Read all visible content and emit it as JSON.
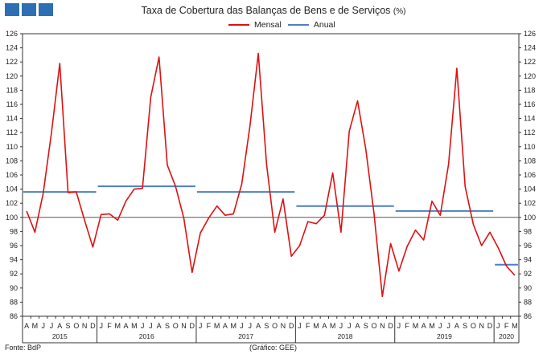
{
  "header": {
    "title": "Taxa de Cobertura das Balanças de Bens e de Serviços",
    "title_unit": "(%)"
  },
  "footer": {
    "source": "Fonte: BdP",
    "graphic_credit": "(Gráfico: GEE)"
  },
  "colors": {
    "mensal": "#dd1111",
    "anual": "#4d7fc4",
    "logo": "#2e6fb3",
    "axis": "#333333",
    "reference_line": "#555555"
  },
  "chart_data": {
    "type": "line",
    "ylim": [
      86,
      126
    ],
    "ytick_step": 2,
    "grid": false,
    "reference_line_y": 100,
    "legend": {
      "position": "top-center",
      "entries": [
        "Mensal",
        "Anual"
      ]
    },
    "month_labels": [
      "A",
      "M",
      "J",
      "J",
      "A",
      "S",
      "O",
      "N",
      "D",
      "J",
      "F",
      "M",
      "A",
      "M",
      "J",
      "J",
      "A",
      "S",
      "O",
      "N",
      "D",
      "J",
      "F",
      "M",
      "A",
      "M",
      "J",
      "J",
      "A",
      "S",
      "O",
      "N",
      "D",
      "J",
      "F",
      "M",
      "A",
      "M",
      "J",
      "J",
      "A",
      "S",
      "O",
      "N",
      "D",
      "J",
      "F",
      "M",
      "A",
      "M",
      "J",
      "J",
      "A",
      "S",
      "O",
      "N",
      "D",
      "J",
      "F",
      "M"
    ],
    "year_groups": [
      {
        "label": "2015",
        "start": 0,
        "end": 8
      },
      {
        "label": "2016",
        "start": 9,
        "end": 20
      },
      {
        "label": "2017",
        "start": 21,
        "end": 32
      },
      {
        "label": "2018",
        "start": 33,
        "end": 44
      },
      {
        "label": "2019",
        "start": 45,
        "end": 56
      },
      {
        "label": "2020",
        "start": 57,
        "end": 59
      }
    ],
    "series": [
      {
        "name": "Mensal",
        "style": "line",
        "values": [
          100.9,
          97.9,
          103.4,
          112.0,
          121.8,
          103.5,
          103.6,
          99.6,
          95.8,
          100.4,
          100.5,
          99.6,
          102.3,
          104.0,
          104.1,
          117.0,
          122.7,
          107.4,
          104.4,
          99.9,
          92.2,
          97.8,
          99.9,
          101.6,
          100.3,
          100.5,
          104.7,
          113.0,
          123.2,
          107.5,
          97.9,
          102.6,
          94.5,
          96.0,
          99.4,
          99.1,
          100.3,
          106.3,
          97.9,
          112.2,
          116.5,
          109.6,
          100.5,
          88.8,
          96.3,
          92.4,
          95.9,
          98.2,
          96.8,
          102.3,
          100.3,
          107.5,
          121.1,
          104.4,
          99.0,
          96.0,
          97.9,
          95.7,
          93.1,
          91.8
        ]
      },
      {
        "name": "Anual",
        "style": "segments",
        "segments": [
          {
            "start": 0,
            "end": 8,
            "value": 103.6
          },
          {
            "start": 9,
            "end": 20,
            "value": 104.4
          },
          {
            "start": 21,
            "end": 32,
            "value": 103.6
          },
          {
            "start": 33,
            "end": 44,
            "value": 101.6
          },
          {
            "start": 45,
            "end": 56,
            "value": 100.9
          },
          {
            "start": 57,
            "end": 59,
            "value": 93.3
          }
        ]
      }
    ]
  }
}
